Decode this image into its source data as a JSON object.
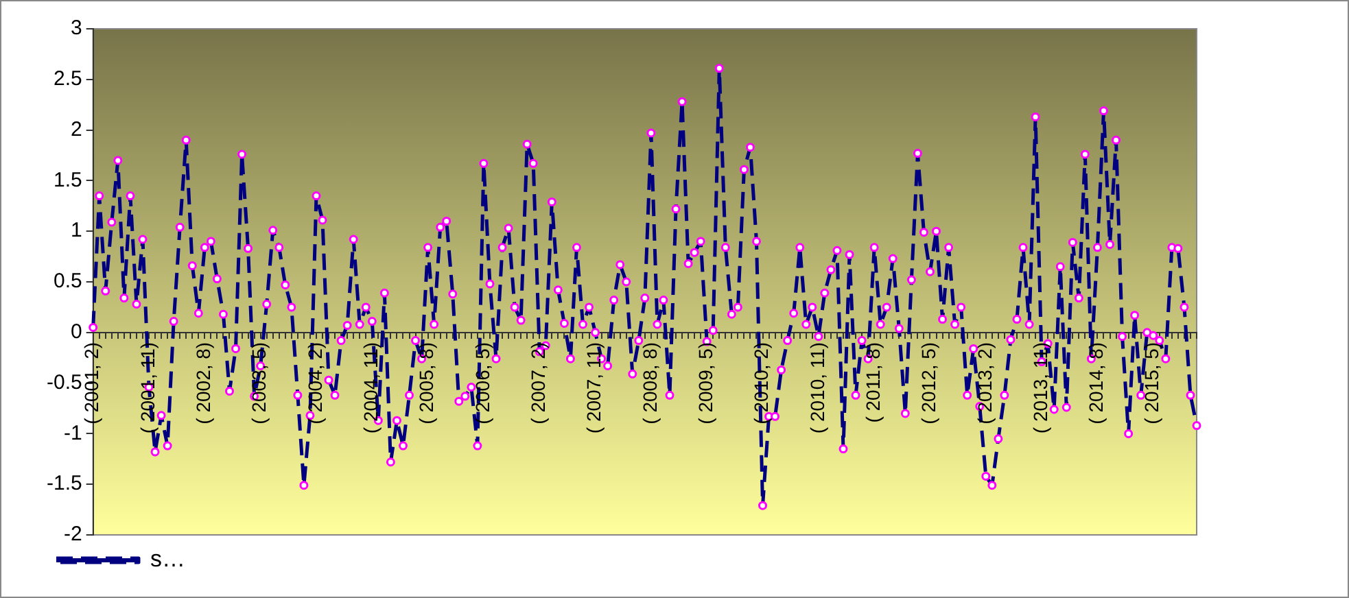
{
  "chart_data": {
    "type": "line",
    "categories": [
      "( 2001, 2)",
      null,
      null,
      null,
      null,
      null,
      null,
      null,
      null,
      "( 2001, 11)",
      null,
      null,
      null,
      null,
      null,
      null,
      null,
      null,
      "( 2002, 8)",
      null,
      null,
      null,
      null,
      null,
      null,
      null,
      null,
      "( 2003, 5)",
      null,
      null,
      null,
      null,
      null,
      null,
      null,
      null,
      "( 2004, 2)",
      null,
      null,
      null,
      null,
      null,
      null,
      null,
      null,
      "( 2004, 11)",
      null,
      null,
      null,
      null,
      null,
      null,
      null,
      null,
      "( 2005, 8)",
      null,
      null,
      null,
      null,
      null,
      null,
      null,
      null,
      "( 2006, 5)",
      null,
      null,
      null,
      null,
      null,
      null,
      null,
      null,
      "( 2007, 2)",
      null,
      null,
      null,
      null,
      null,
      null,
      null,
      null,
      "( 2007, 11)",
      null,
      null,
      null,
      null,
      null,
      null,
      null,
      null,
      "( 2008, 8)",
      null,
      null,
      null,
      null,
      null,
      null,
      null,
      null,
      "( 2009, 5)",
      null,
      null,
      null,
      null,
      null,
      null,
      null,
      null,
      "( 2010, 2)",
      null,
      null,
      null,
      null,
      null,
      null,
      null,
      null,
      "( 2010, 11)",
      null,
      null,
      null,
      null,
      null,
      null,
      null,
      null,
      "( 2011, 8)",
      null,
      null,
      null,
      null,
      null,
      null,
      null,
      null,
      "( 2012, 5)",
      null,
      null,
      null,
      null,
      null,
      null,
      null,
      null,
      "( 2013, 2)",
      null,
      null,
      null,
      null,
      null,
      null,
      null,
      null,
      "( 2013, 11)",
      null,
      null,
      null,
      null,
      null,
      null,
      null,
      null,
      "( 2014, 8)",
      null,
      null,
      null,
      null,
      null,
      null,
      null,
      null,
      "( 2015, 5)",
      null,
      null,
      null,
      null,
      null,
      null,
      null
    ],
    "series": [
      {
        "name": "s…",
        "color": "#000080",
        "values": [
          0.05,
          1.35,
          0.41,
          1.09,
          1.7,
          0.34,
          1.35,
          0.28,
          0.92,
          -0.54,
          -1.18,
          -0.82,
          -1.12,
          0.11,
          1.04,
          1.9,
          0.66,
          0.19,
          0.84,
          0.9,
          0.53,
          0.18,
          -0.58,
          -0.16,
          1.76,
          0.83,
          -0.63,
          -0.33,
          0.28,
          1.01,
          0.84,
          0.47,
          0.25,
          -0.62,
          -1.51,
          -0.82,
          1.35,
          1.11,
          -0.47,
          -0.62,
          -0.08,
          0.07,
          0.92,
          0.08,
          0.25,
          0.11,
          -0.87,
          0.39,
          -1.28,
          -0.87,
          -1.12,
          -0.62,
          -0.08,
          -0.26,
          0.84,
          0.08,
          1.04,
          1.1,
          0.38,
          -0.68,
          -0.63,
          -0.54,
          -1.12,
          1.67,
          0.48,
          -0.26,
          0.84,
          1.03,
          0.25,
          0.12,
          1.86,
          1.67,
          -0.19,
          -0.13,
          1.29,
          0.42,
          0.09,
          -0.26,
          0.84,
          0.08,
          0.25,
          0.0,
          -0.26,
          -0.33,
          0.32,
          0.67,
          0.5,
          -0.41,
          -0.08,
          0.34,
          1.97,
          0.08,
          0.32,
          -0.62,
          1.22,
          2.28,
          0.68,
          0.79,
          0.9,
          -0.09,
          0.02,
          2.61,
          0.84,
          0.18,
          0.25,
          1.61,
          1.83,
          0.9,
          -1.71,
          -0.83,
          -0.83,
          -0.37,
          -0.08,
          0.19,
          0.84,
          0.08,
          0.25,
          -0.04,
          0.39,
          0.62,
          0.81,
          -1.15,
          0.77,
          -0.62,
          -0.08,
          -0.26,
          0.84,
          0.08,
          0.25,
          0.73,
          0.04,
          -0.8,
          0.52,
          1.77,
          0.99,
          0.6,
          1.0,
          0.13,
          0.84,
          0.08,
          0.25,
          -0.62,
          -0.16,
          -0.73,
          -1.42,
          -1.51,
          -1.05,
          -0.62,
          -0.07,
          0.13,
          0.84,
          0.08,
          2.13,
          -0.29,
          -0.11,
          -0.76,
          0.65,
          -0.74,
          0.89,
          0.34,
          1.76,
          -0.26,
          0.84,
          2.19,
          0.87,
          1.9,
          -0.04,
          -1.0,
          0.17,
          -0.62,
          0.0,
          -0.03,
          -0.08,
          -0.26,
          0.84,
          0.83,
          0.25,
          -0.62,
          -0.92
        ]
      }
    ],
    "ylim": [
      -2,
      3
    ],
    "yticks": [
      -2,
      -1.5,
      -1,
      -0.5,
      0,
      0.5,
      1,
      1.5,
      2,
      2.5,
      3
    ],
    "marker": "circle",
    "line_style": "dashed",
    "legend": "bottom"
  }
}
